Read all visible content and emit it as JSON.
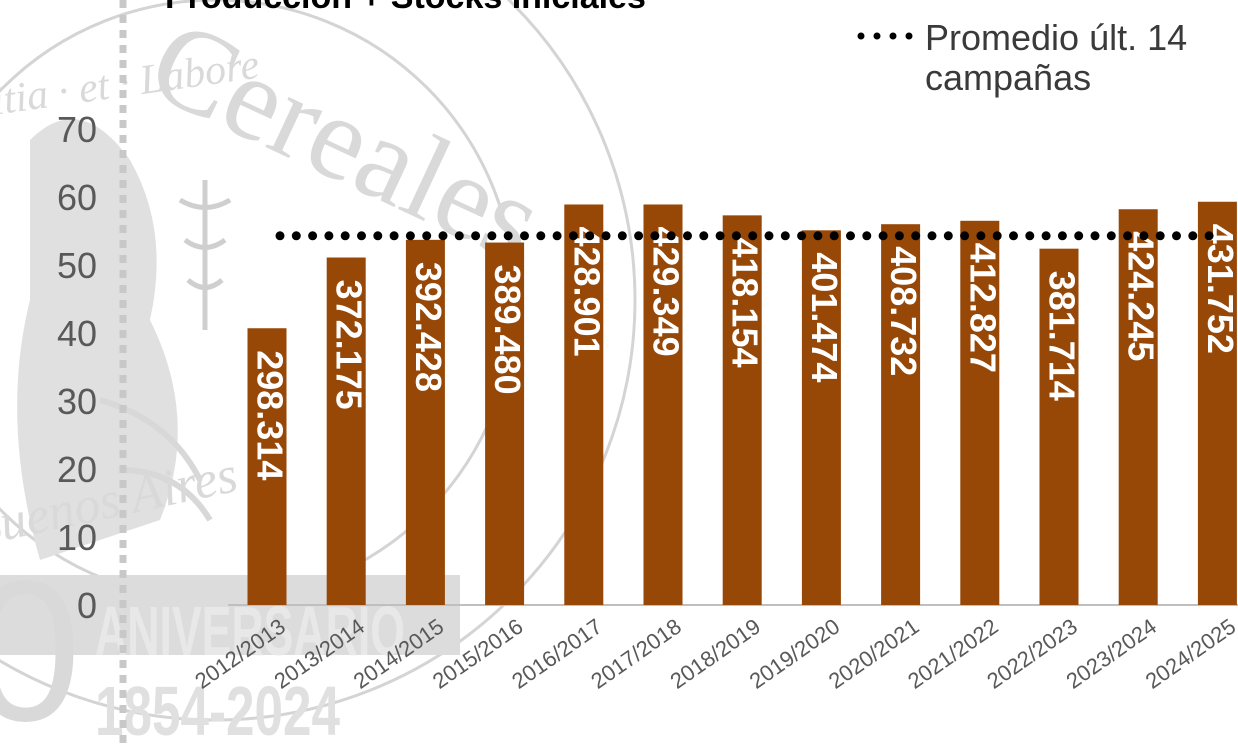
{
  "chart_data": {
    "type": "bar",
    "title": "Producción + Stocks Iniciales",
    "xlabel": "",
    "ylabel": "",
    "categories": [
      "2012/2013",
      "2013/2014",
      "2014/2015",
      "2015/2016",
      "2016/2017",
      "2017/2018",
      "2018/2019",
      "2019/2020",
      "2020/2021",
      "2021/2022",
      "2022/2023",
      "2023/2024",
      "2024/2025"
    ],
    "values": [
      40.7,
      51.1,
      53.7,
      53.3,
      58.9,
      58.9,
      57.3,
      55.1,
      56.0,
      56.5,
      52.4,
      58.2,
      59.3
    ],
    "data_labels": [
      "298.314",
      "372.175",
      "392.428",
      "389.480",
      "428.901",
      "429.349",
      "418.154",
      "401.474",
      "408.732",
      "412.827",
      "381.714",
      "424.245",
      "431.752"
    ],
    "ylim": [
      0,
      80
    ],
    "yticks": [
      0,
      10,
      20,
      30,
      40,
      50,
      60,
      70
    ],
    "bar_color": "#974706",
    "average": {
      "label": "Promedio últ. 14 campañas",
      "value": 54.3,
      "color": "#000000"
    },
    "legend_position": "top-right",
    "grid": false
  },
  "watermark": {
    "seal_text": "Cereales",
    "motto": "Iustitia · et · Labore",
    "city": "Buenos Aires",
    "banner_title": "ANIVERSARIO",
    "banner_years": "1854-2024",
    "number_fragment": "0"
  }
}
